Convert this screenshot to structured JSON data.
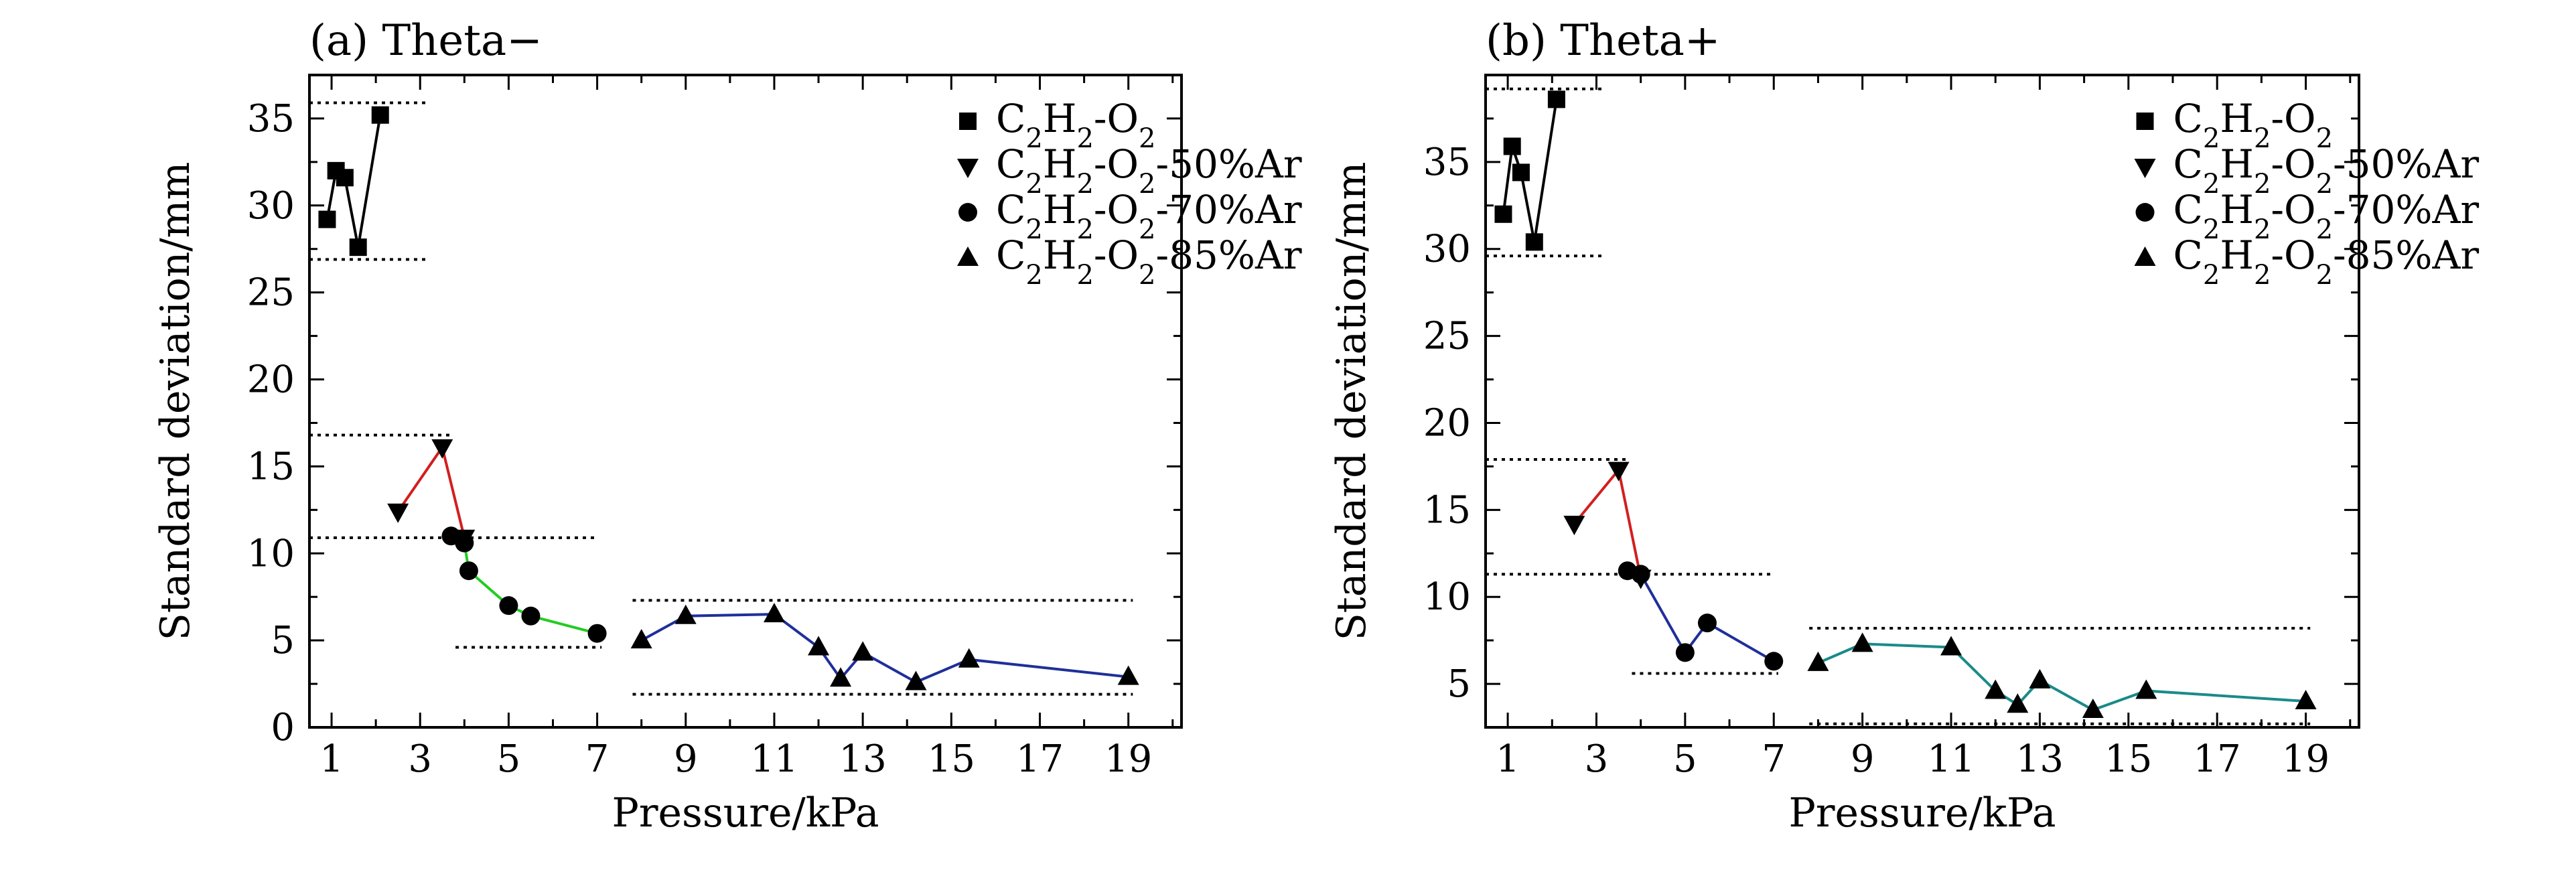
{
  "chart_data": [
    {
      "type": "scatter",
      "title": "(a) Theta−",
      "xlabel": "Pressure/kPa",
      "ylabel": "Standard deviation/mm",
      "xlim": [
        0.5,
        20.2
      ],
      "ylim": [
        0,
        37.5
      ],
      "xticks": [
        1,
        3,
        5,
        7,
        9,
        11,
        13,
        15,
        17,
        19
      ],
      "yticks": [
        0,
        5,
        10,
        15,
        20,
        25,
        30,
        35
      ],
      "legend_position": "top-right",
      "series": [
        {
          "name": "C2H2-O2",
          "legend": {
            "base": "C",
            "s1": "2",
            "mid": "H",
            "s2": "2",
            "tail": "-O",
            "s3": "2",
            "suffix": ""
          },
          "marker": "square",
          "color": "#000000",
          "x": [
            0.9,
            1.1,
            1.3,
            1.6,
            2.1
          ],
          "y": [
            29.2,
            32.0,
            31.6,
            27.6,
            35.2
          ]
        },
        {
          "name": "C2H2-O2-50%Ar",
          "legend": {
            "base": "C",
            "s1": "2",
            "mid": "H",
            "s2": "2",
            "tail": "-O",
            "s3": "2",
            "suffix": "-50%Ar"
          },
          "marker": "triangle-down",
          "color": "#d21f1f",
          "x": [
            2.5,
            3.5,
            4.0
          ],
          "y": [
            12.4,
            16.1,
            10.9
          ]
        },
        {
          "name": "C2H2-O2-70%Ar",
          "legend": {
            "base": "C",
            "s1": "2",
            "mid": "H",
            "s2": "2",
            "tail": "-O",
            "s3": "2",
            "suffix": "-70%Ar"
          },
          "marker": "circle",
          "color": "#22cc22",
          "x": [
            3.7,
            4.0,
            4.1,
            5.0,
            5.5,
            7.0
          ],
          "y": [
            11.0,
            10.6,
            9.0,
            7.0,
            6.4,
            5.4
          ]
        },
        {
          "name": "C2H2-O2-85%Ar",
          "legend": {
            "base": "C",
            "s1": "2",
            "mid": "H",
            "s2": "2",
            "tail": "-O",
            "s3": "2",
            "suffix": "-85%Ar"
          },
          "marker": "triangle-up",
          "color": "#1f2f9a",
          "x": [
            8.0,
            9.0,
            11.0,
            12.0,
            12.5,
            13.0,
            14.2,
            15.4,
            19.0
          ],
          "y": [
            5.0,
            6.4,
            6.5,
            4.6,
            2.8,
            4.3,
            2.6,
            3.9,
            2.9
          ]
        }
      ],
      "reference_lines": [
        {
          "y": 35.9,
          "x": [
            0.5,
            3.2
          ]
        },
        {
          "y": 26.9,
          "x": [
            0.5,
            3.2
          ]
        },
        {
          "y": 16.8,
          "x": [
            0.5,
            3.7
          ]
        },
        {
          "y": 10.9,
          "x": [
            0.5,
            7.0
          ]
        },
        {
          "y": 4.6,
          "x": [
            3.8,
            7.1
          ]
        },
        {
          "y": 7.3,
          "x": [
            7.8,
            19.1
          ]
        },
        {
          "y": 1.9,
          "x": [
            7.8,
            19.1
          ]
        }
      ]
    },
    {
      "type": "scatter",
      "title": "(b) Theta+",
      "xlabel": "Pressure/kPa",
      "ylabel": "Standard deviation/mm",
      "xlim": [
        0.5,
        20.2
      ],
      "ylim": [
        2.5,
        40
      ],
      "xticks": [
        1,
        3,
        5,
        7,
        9,
        11,
        13,
        15,
        17,
        19
      ],
      "yticks": [
        5,
        10,
        15,
        20,
        25,
        30,
        35
      ],
      "legend_position": "top-right",
      "series": [
        {
          "name": "C2H2-O2",
          "legend": {
            "base": "C",
            "s1": "2",
            "mid": "H",
            "s2": "2",
            "tail": "-O",
            "s3": "2",
            "suffix": ""
          },
          "marker": "square",
          "color": "#000000",
          "x": [
            0.9,
            1.1,
            1.3,
            1.6,
            2.1
          ],
          "y": [
            32.0,
            35.9,
            34.4,
            30.4,
            38.6
          ]
        },
        {
          "name": "C2H2-O2-50%Ar",
          "legend": {
            "base": "C",
            "s1": "2",
            "mid": "H",
            "s2": "2",
            "tail": "-O",
            "s3": "2",
            "suffix": "-50%Ar"
          },
          "marker": "triangle-down",
          "color": "#d21f1f",
          "x": [
            2.5,
            3.5,
            4.0
          ],
          "y": [
            14.2,
            17.3,
            11.1
          ]
        },
        {
          "name": "C2H2-O2-70%Ar",
          "legend": {
            "base": "C",
            "s1": "2",
            "mid": "H",
            "s2": "2",
            "tail": "-O",
            "s3": "2",
            "suffix": "-70%Ar"
          },
          "marker": "circle",
          "color": "#1f2f9a",
          "x": [
            3.7,
            4.0,
            5.0,
            5.5,
            7.0
          ],
          "y": [
            11.5,
            11.3,
            6.8,
            8.5,
            6.3
          ]
        },
        {
          "name": "C2H2-O2-85%Ar",
          "legend": {
            "base": "C",
            "s1": "2",
            "mid": "H",
            "s2": "2",
            "tail": "-O",
            "s3": "2",
            "suffix": "-85%Ar"
          },
          "marker": "triangle-up",
          "color": "#1a8a8a",
          "x": [
            8.0,
            9.0,
            11.0,
            12.0,
            12.5,
            13.0,
            14.2,
            15.4,
            19.0
          ],
          "y": [
            6.2,
            7.3,
            7.1,
            4.6,
            3.8,
            5.2,
            3.5,
            4.6,
            4.0
          ]
        }
      ],
      "reference_lines": [
        {
          "y": 39.2,
          "x": [
            0.5,
            3.2
          ]
        },
        {
          "y": 29.6,
          "x": [
            0.5,
            3.2
          ]
        },
        {
          "y": 17.9,
          "x": [
            0.5,
            3.7
          ]
        },
        {
          "y": 11.3,
          "x": [
            0.5,
            7.0
          ]
        },
        {
          "y": 5.6,
          "x": [
            3.8,
            7.1
          ]
        },
        {
          "y": 8.2,
          "x": [
            7.8,
            19.1
          ]
        },
        {
          "y": 2.7,
          "x": [
            7.8,
            19.1
          ]
        }
      ]
    }
  ]
}
